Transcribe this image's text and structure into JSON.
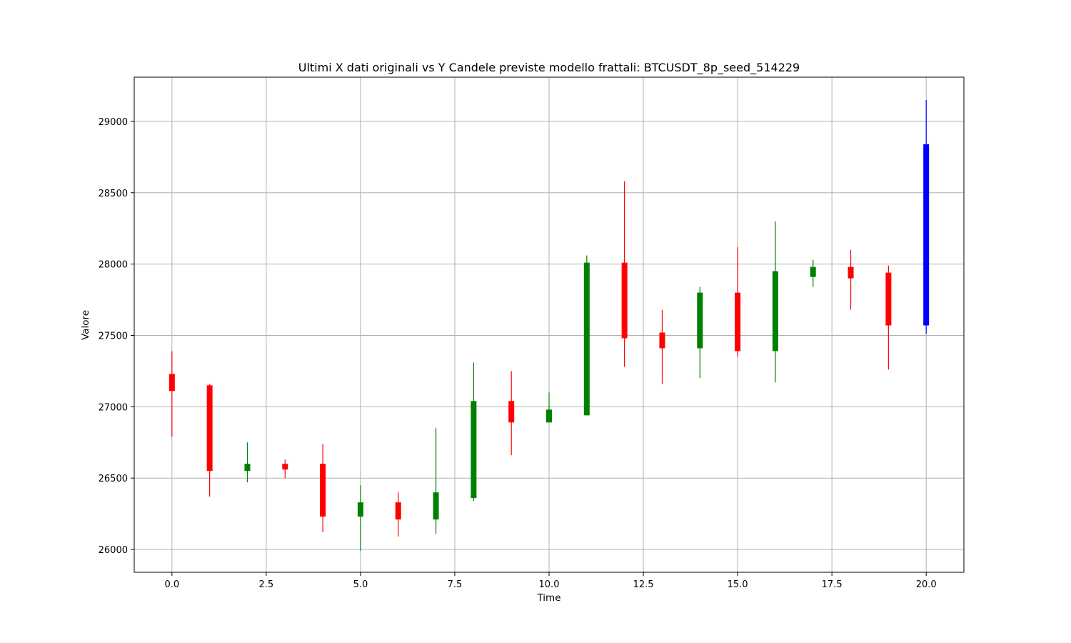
{
  "chart_data": {
    "type": "candlestick",
    "title": "Ultimi X dati originali vs Y Candele previste modello frattali: BTCUSDT_8p_seed_514229",
    "xlabel": "Time",
    "ylabel": "Valore",
    "xlim": [
      -1,
      21
    ],
    "ylim": [
      25840,
      29310
    ],
    "grid": true,
    "xticks": [
      0.0,
      2.5,
      5.0,
      7.5,
      10.0,
      12.5,
      15.0,
      17.5,
      20.0
    ],
    "xtick_labels": [
      "0.0",
      "2.5",
      "5.0",
      "7.5",
      "10.0",
      "12.5",
      "15.0",
      "17.5",
      "20.0"
    ],
    "yticks": [
      26000,
      26500,
      27000,
      27500,
      28000,
      28500,
      29000
    ],
    "ytick_labels": [
      "26000",
      "26500",
      "27000",
      "27500",
      "28000",
      "28500",
      "29000"
    ],
    "colors": {
      "up": "#008000",
      "down": "#ff0000",
      "forecast": "#0000ff",
      "grid": "#b0b0b0"
    },
    "candles": [
      {
        "x": 0,
        "open": 27230,
        "high": 27390,
        "low": 26790,
        "close": 27110,
        "kind": "down"
      },
      {
        "x": 1,
        "open": 27150,
        "high": 27160,
        "low": 26370,
        "close": 26550,
        "kind": "down"
      },
      {
        "x": 2,
        "open": 26550,
        "high": 26750,
        "low": 26470,
        "close": 26600,
        "kind": "up"
      },
      {
        "x": 3,
        "open": 26600,
        "high": 26630,
        "low": 26500,
        "close": 26560,
        "kind": "down"
      },
      {
        "x": 4,
        "open": 26600,
        "high": 26740,
        "low": 26120,
        "close": 26230,
        "kind": "down"
      },
      {
        "x": 5,
        "open": 26230,
        "high": 26450,
        "low": 25990,
        "close": 26330,
        "kind": "up"
      },
      {
        "x": 6,
        "open": 26330,
        "high": 26400,
        "low": 26090,
        "close": 26210,
        "kind": "down"
      },
      {
        "x": 7,
        "open": 26210,
        "high": 26850,
        "low": 26110,
        "close": 26400,
        "kind": "up"
      },
      {
        "x": 8,
        "open": 26360,
        "high": 27310,
        "low": 26340,
        "close": 27040,
        "kind": "up"
      },
      {
        "x": 9,
        "open": 27040,
        "high": 27250,
        "low": 26660,
        "close": 26890,
        "kind": "down"
      },
      {
        "x": 10,
        "open": 26890,
        "high": 27100,
        "low": 26890,
        "close": 26980,
        "kind": "up"
      },
      {
        "x": 11,
        "open": 26940,
        "high": 28060,
        "low": 26940,
        "close": 28010,
        "kind": "up"
      },
      {
        "x": 12,
        "open": 28010,
        "high": 28580,
        "low": 27280,
        "close": 27480,
        "kind": "down"
      },
      {
        "x": 13,
        "open": 27520,
        "high": 27680,
        "low": 27160,
        "close": 27410,
        "kind": "down"
      },
      {
        "x": 14,
        "open": 27410,
        "high": 27840,
        "low": 27200,
        "close": 27800,
        "kind": "up"
      },
      {
        "x": 15,
        "open": 27800,
        "high": 28120,
        "low": 27350,
        "close": 27390,
        "kind": "down"
      },
      {
        "x": 16,
        "open": 27390,
        "high": 28300,
        "low": 27170,
        "close": 27950,
        "kind": "up"
      },
      {
        "x": 17,
        "open": 27910,
        "high": 28030,
        "low": 27840,
        "close": 27980,
        "kind": "up"
      },
      {
        "x": 18,
        "open": 27980,
        "high": 28100,
        "low": 27680,
        "close": 27900,
        "kind": "down"
      },
      {
        "x": 19,
        "open": 27940,
        "high": 27990,
        "low": 27260,
        "close": 27570,
        "kind": "down"
      },
      {
        "x": 20,
        "open": 27570,
        "high": 29150,
        "low": 27510,
        "close": 28840,
        "kind": "forecast"
      }
    ]
  }
}
